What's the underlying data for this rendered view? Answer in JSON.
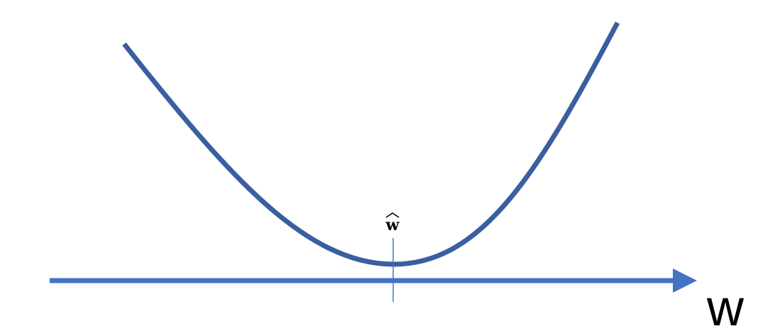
{
  "diagram": {
    "axis_label": "w",
    "minimum_label": "w",
    "colors": {
      "curve": "#3A5FA0",
      "axis": "#4472C4",
      "marker": "#4472C4",
      "text": "#000000"
    }
  }
}
